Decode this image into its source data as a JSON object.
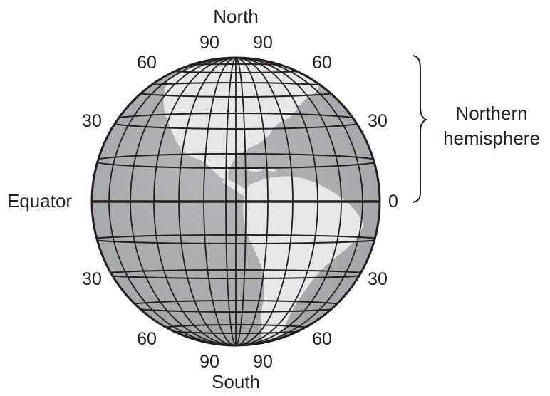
{
  "labels": {
    "north": "North",
    "south": "South",
    "equator": "Equator",
    "equator_value": "0",
    "northern_hemisphere_line1": "Northern",
    "northern_hemisphere_line2": "hemisphere",
    "lat_90": "90",
    "lat_60": "60",
    "lat_30": "30"
  },
  "colors": {
    "ocean": "#a7a9ac",
    "land": "#e6e7e8",
    "grid": "#231f20",
    "text": "#231f20"
  },
  "icons": {
    "globe": "globe-icon",
    "bracket": "curly-brace-icon"
  }
}
